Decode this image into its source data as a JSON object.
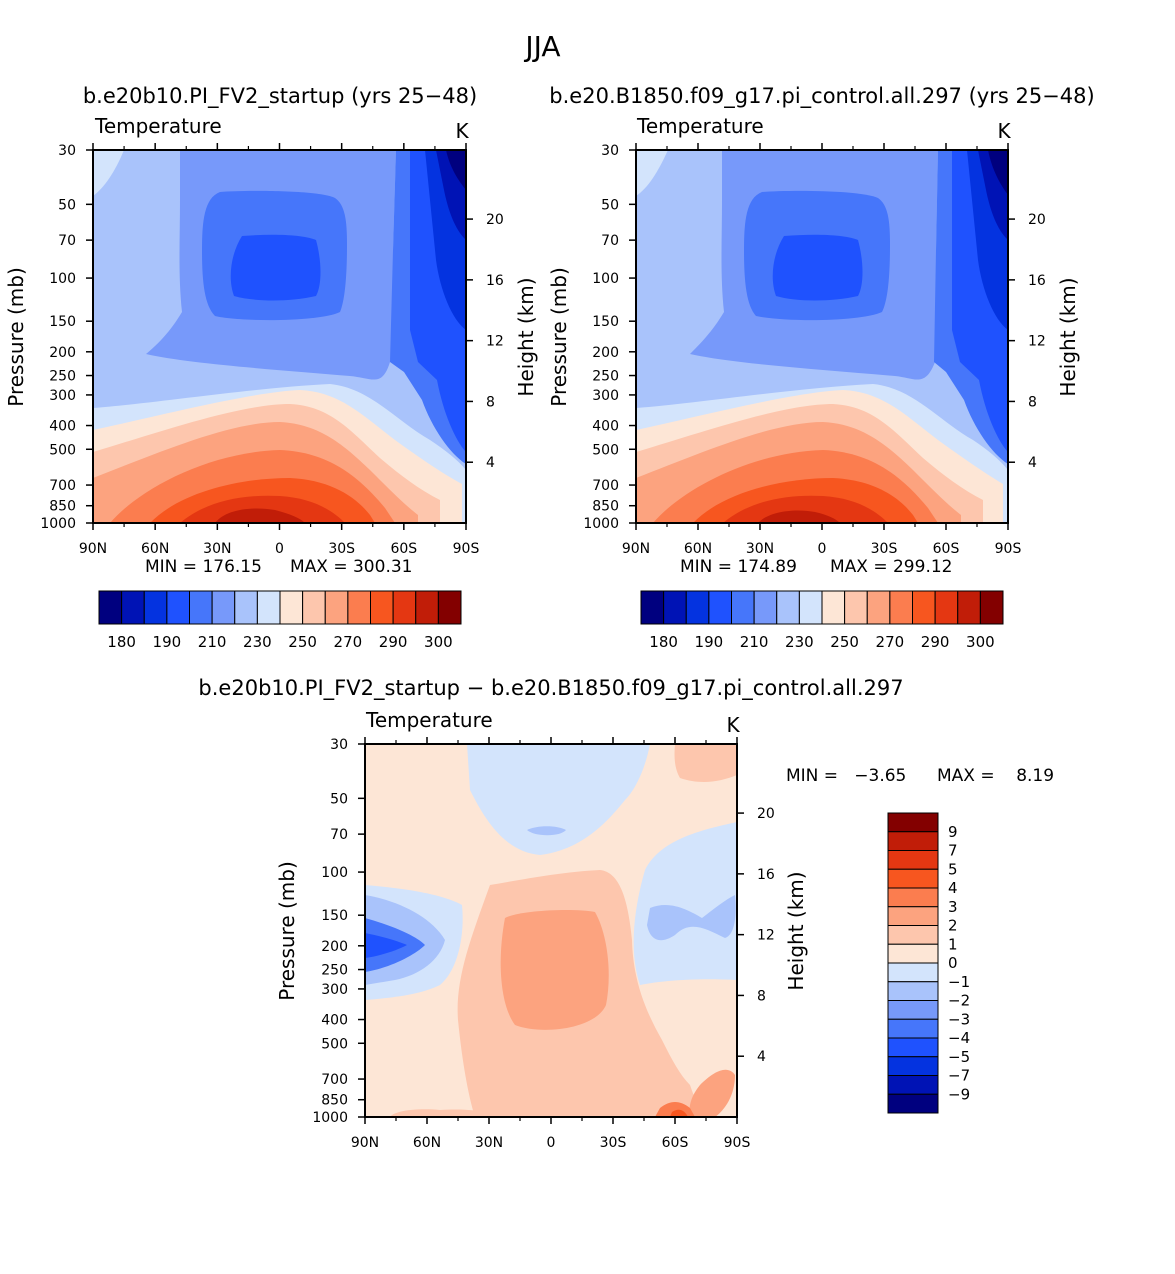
{
  "figure": {
    "season": "JJA"
  },
  "chart_data": [
    {
      "type": "heatmap",
      "id": "model1",
      "title": "b.e20b10.PI_FV2_startup (yrs 25−48)",
      "variable": "Temperature",
      "units": "K",
      "xlabel": "",
      "ylabel": "Pressure (mb)",
      "ylabel_right": "Height (km)",
      "x_ticks": [
        "90N",
        "60N",
        "30N",
        "0",
        "30S",
        "60S",
        "90S"
      ],
      "x_range": [
        90,
        -90
      ],
      "y_ticks": [
        30,
        50,
        70,
        100,
        150,
        200,
        250,
        300,
        400,
        500,
        700,
        850,
        1000
      ],
      "y_range": [
        30,
        1000
      ],
      "height_ticks": [
        20,
        16,
        12,
        8,
        4
      ],
      "min_label": "MIN = 176.15",
      "max_label": "MAX = 300.31",
      "min": 176.15,
      "max": 300.31,
      "colorbar_levels": [
        180,
        185,
        190,
        200,
        210,
        220,
        230,
        240,
        250,
        260,
        270,
        280,
        290,
        295,
        300
      ],
      "colorbar_labels": [
        "180",
        "190",
        "210",
        "230",
        "250",
        "270",
        "290",
        "300"
      ],
      "colorbar_orientation": "horizontal"
    },
    {
      "type": "heatmap",
      "id": "model2",
      "title": "b.e20.B1850.f09_g17.pi_control.all.297 (yrs 25−48)",
      "variable": "Temperature",
      "units": "K",
      "xlabel": "",
      "ylabel": "Pressure (mb)",
      "ylabel_right": "Height (km)",
      "x_ticks": [
        "90N",
        "60N",
        "30N",
        "0",
        "30S",
        "60S",
        "90S"
      ],
      "x_range": [
        90,
        -90
      ],
      "y_ticks": [
        30,
        50,
        70,
        100,
        150,
        200,
        250,
        300,
        400,
        500,
        700,
        850,
        1000
      ],
      "y_range": [
        30,
        1000
      ],
      "height_ticks": [
        20,
        16,
        12,
        8,
        4
      ],
      "min_label": "MIN = 174.89",
      "max_label": "MAX = 299.12",
      "min": 174.89,
      "max": 299.12,
      "colorbar_levels": [
        180,
        185,
        190,
        200,
        210,
        220,
        230,
        240,
        250,
        260,
        270,
        280,
        290,
        295,
        300
      ],
      "colorbar_labels": [
        "180",
        "190",
        "210",
        "230",
        "250",
        "270",
        "290",
        "300"
      ],
      "colorbar_orientation": "horizontal"
    },
    {
      "type": "heatmap",
      "id": "difference",
      "title": "b.e20b10.PI_FV2_startup − b.e20.B1850.f09_g17.pi_control.all.297",
      "variable": "Temperature",
      "units": "K",
      "xlabel": "",
      "ylabel": "Pressure (mb)",
      "ylabel_right": "Height (km)",
      "x_ticks": [
        "90N",
        "60N",
        "30N",
        "0",
        "30S",
        "60S",
        "90S"
      ],
      "x_range": [
        90,
        -90
      ],
      "y_ticks": [
        30,
        50,
        70,
        100,
        150,
        200,
        250,
        300,
        400,
        500,
        700,
        850,
        1000
      ],
      "y_range": [
        30,
        1000
      ],
      "height_ticks": [
        20,
        16,
        12,
        8,
        4
      ],
      "min_label": "MIN =   −3.65",
      "max_label": "MAX =    8.19",
      "min": -3.65,
      "max": 8.19,
      "colorbar_levels": [
        -9,
        -7,
        -5,
        -4,
        -3,
        -2,
        -1,
        0,
        1,
        2,
        3,
        4,
        5,
        7,
        9
      ],
      "colorbar_labels": [
        "9",
        "7",
        "5",
        "4",
        "3",
        "2",
        "1",
        "0",
        "−1",
        "−2",
        "−3",
        "−4",
        "−5",
        "−7",
        "−9"
      ],
      "colorbar_orientation": "vertical"
    }
  ],
  "colors": {
    "abs_palette": [
      "#00007f",
      "#0013b5",
      "#0433e0",
      "#1f52fe",
      "#4676fa",
      "#7799fa",
      "#a9c3fb",
      "#d3e4fc",
      "#fde6d6",
      "#fdc6ad",
      "#fca37f",
      "#fb7d4f",
      "#f7561f",
      "#e43712",
      "#c11d08",
      "#830000"
    ],
    "diff_palette_top_to_bottom": [
      "#830000",
      "#c11d08",
      "#e43712",
      "#f7561f",
      "#fb7d4f",
      "#fca37f",
      "#fdc6ad",
      "#fde6d6",
      "#d3e4fc",
      "#a9c3fb",
      "#7799fa",
      "#4676fa",
      "#1f52fe",
      "#0433e0",
      "#0013b5",
      "#00007f"
    ]
  }
}
